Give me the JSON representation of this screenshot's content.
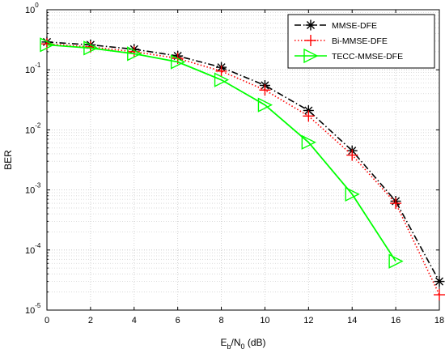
{
  "chart_data": {
    "type": "line",
    "xlabel": {
      "main": "E",
      "sub1": "b",
      "mid": "/N",
      "sub2": "0",
      "tail": " (dB)"
    },
    "ylabel": "BER",
    "xlim": [
      0,
      18
    ],
    "ylim": [
      1e-05,
      1
    ],
    "yscale": "log",
    "grid": true,
    "legend_position": "top-right",
    "x": [
      0,
      2,
      4,
      6,
      8,
      10,
      12,
      14,
      16,
      18
    ],
    "x_ticks": [
      "0",
      "2",
      "4",
      "6",
      "8",
      "10",
      "12",
      "14",
      "16",
      "18"
    ],
    "y_ticks": [
      {
        "base": "10",
        "exp": "0"
      },
      {
        "base": "10",
        "exp": "-1"
      },
      {
        "base": "10",
        "exp": "-2"
      },
      {
        "base": "10",
        "exp": "-3"
      },
      {
        "base": "10",
        "exp": "-4"
      },
      {
        "base": "10",
        "exp": "-5"
      }
    ],
    "series": [
      {
        "name": "MMSE-DFE",
        "color": "#000000",
        "dash": "dashdot",
        "marker": "asterisk",
        "values": [
          0.29,
          0.26,
          0.22,
          0.17,
          0.11,
          0.055,
          0.021,
          0.0045,
          0.00065,
          3e-05
        ]
      },
      {
        "name": "Bi-MMSE-DFE",
        "color": "#ff0000",
        "dash": "dotted",
        "marker": "plus",
        "values": [
          0.27,
          0.24,
          0.2,
          0.155,
          0.095,
          0.046,
          0.017,
          0.0038,
          0.0006,
          1.8e-05
        ]
      },
      {
        "name": "TECC-MMSE-DFE",
        "color": "#00ff00",
        "dash": "solid",
        "marker": "triangle-right",
        "values": [
          0.26,
          0.23,
          0.185,
          0.135,
          0.068,
          0.026,
          0.0062,
          0.00085,
          6.5e-05,
          null
        ]
      }
    ]
  }
}
